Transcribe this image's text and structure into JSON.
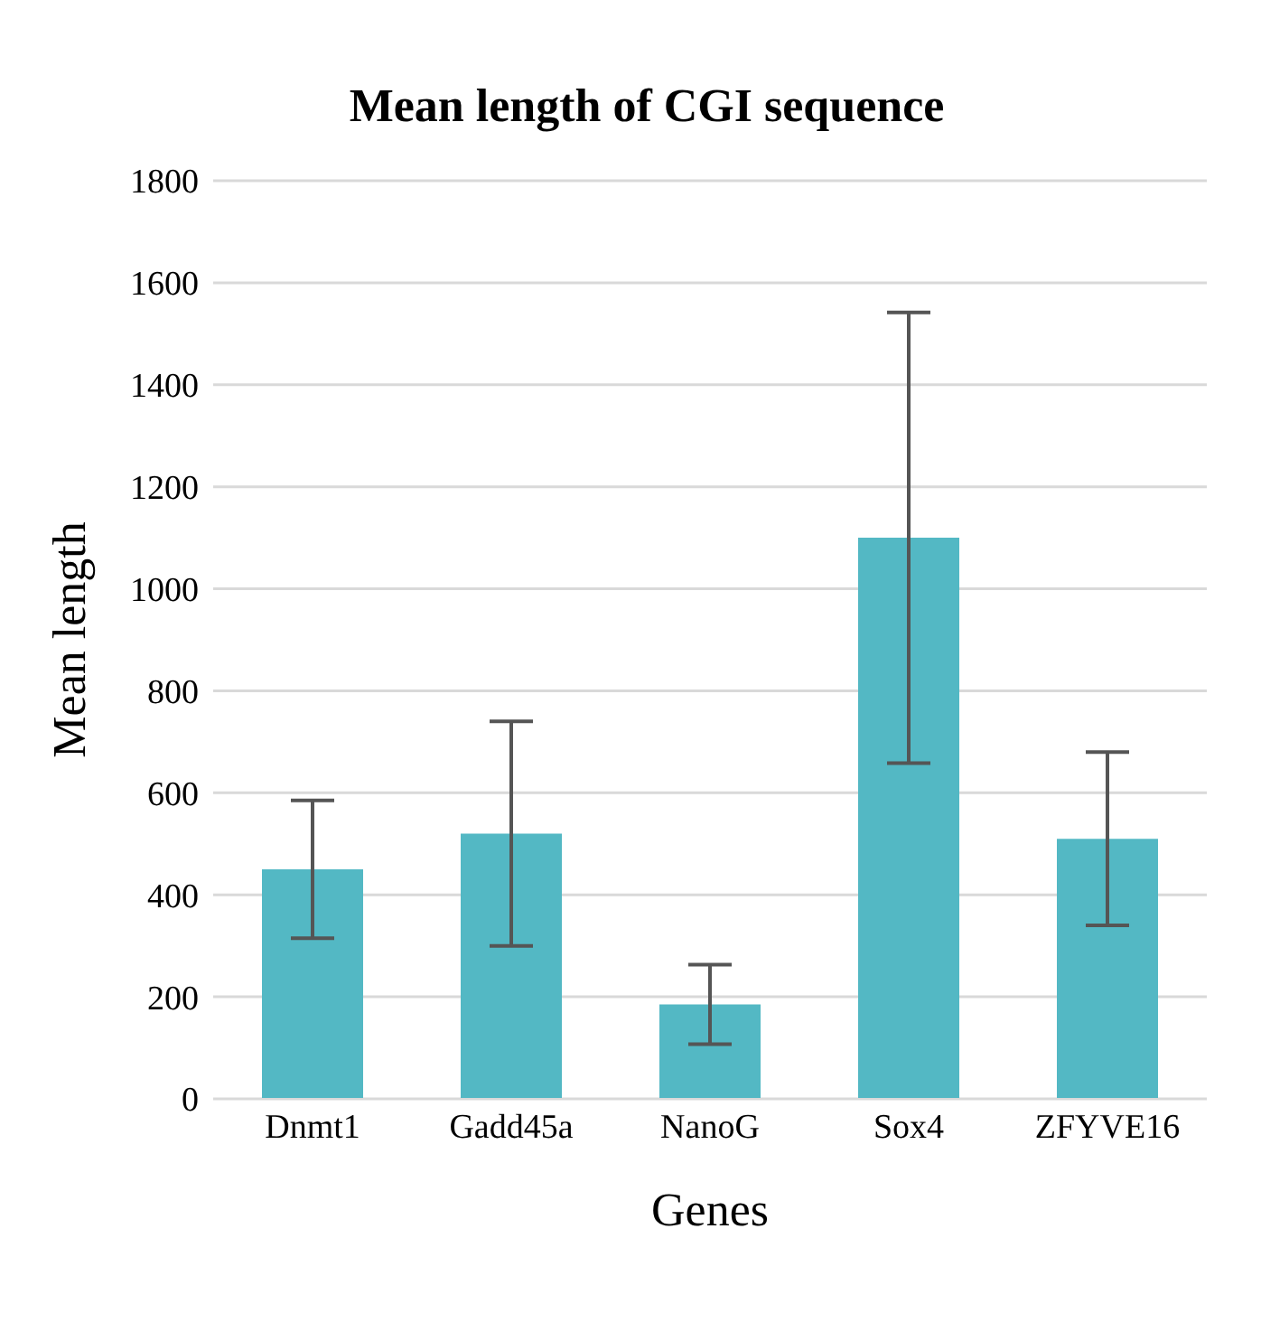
{
  "chart_data": {
    "type": "bar",
    "title": "Mean length of CGI sequence",
    "xlabel": "Genes",
    "ylabel": "Mean length",
    "categories": [
      "Dnmt1",
      "Gadd45a",
      "NanoG",
      "Sox4",
      "ZFYVE16"
    ],
    "values": [
      450,
      520,
      185,
      1100,
      510
    ],
    "errors": [
      135,
      220,
      78,
      442,
      170
    ],
    "color": "#53b8c4",
    "ylim": [
      0,
      1800
    ],
    "yticks": [
      0,
      200,
      400,
      600,
      800,
      1000,
      1200,
      1400,
      1600,
      1800
    ],
    "grid": "y",
    "legend": false
  }
}
